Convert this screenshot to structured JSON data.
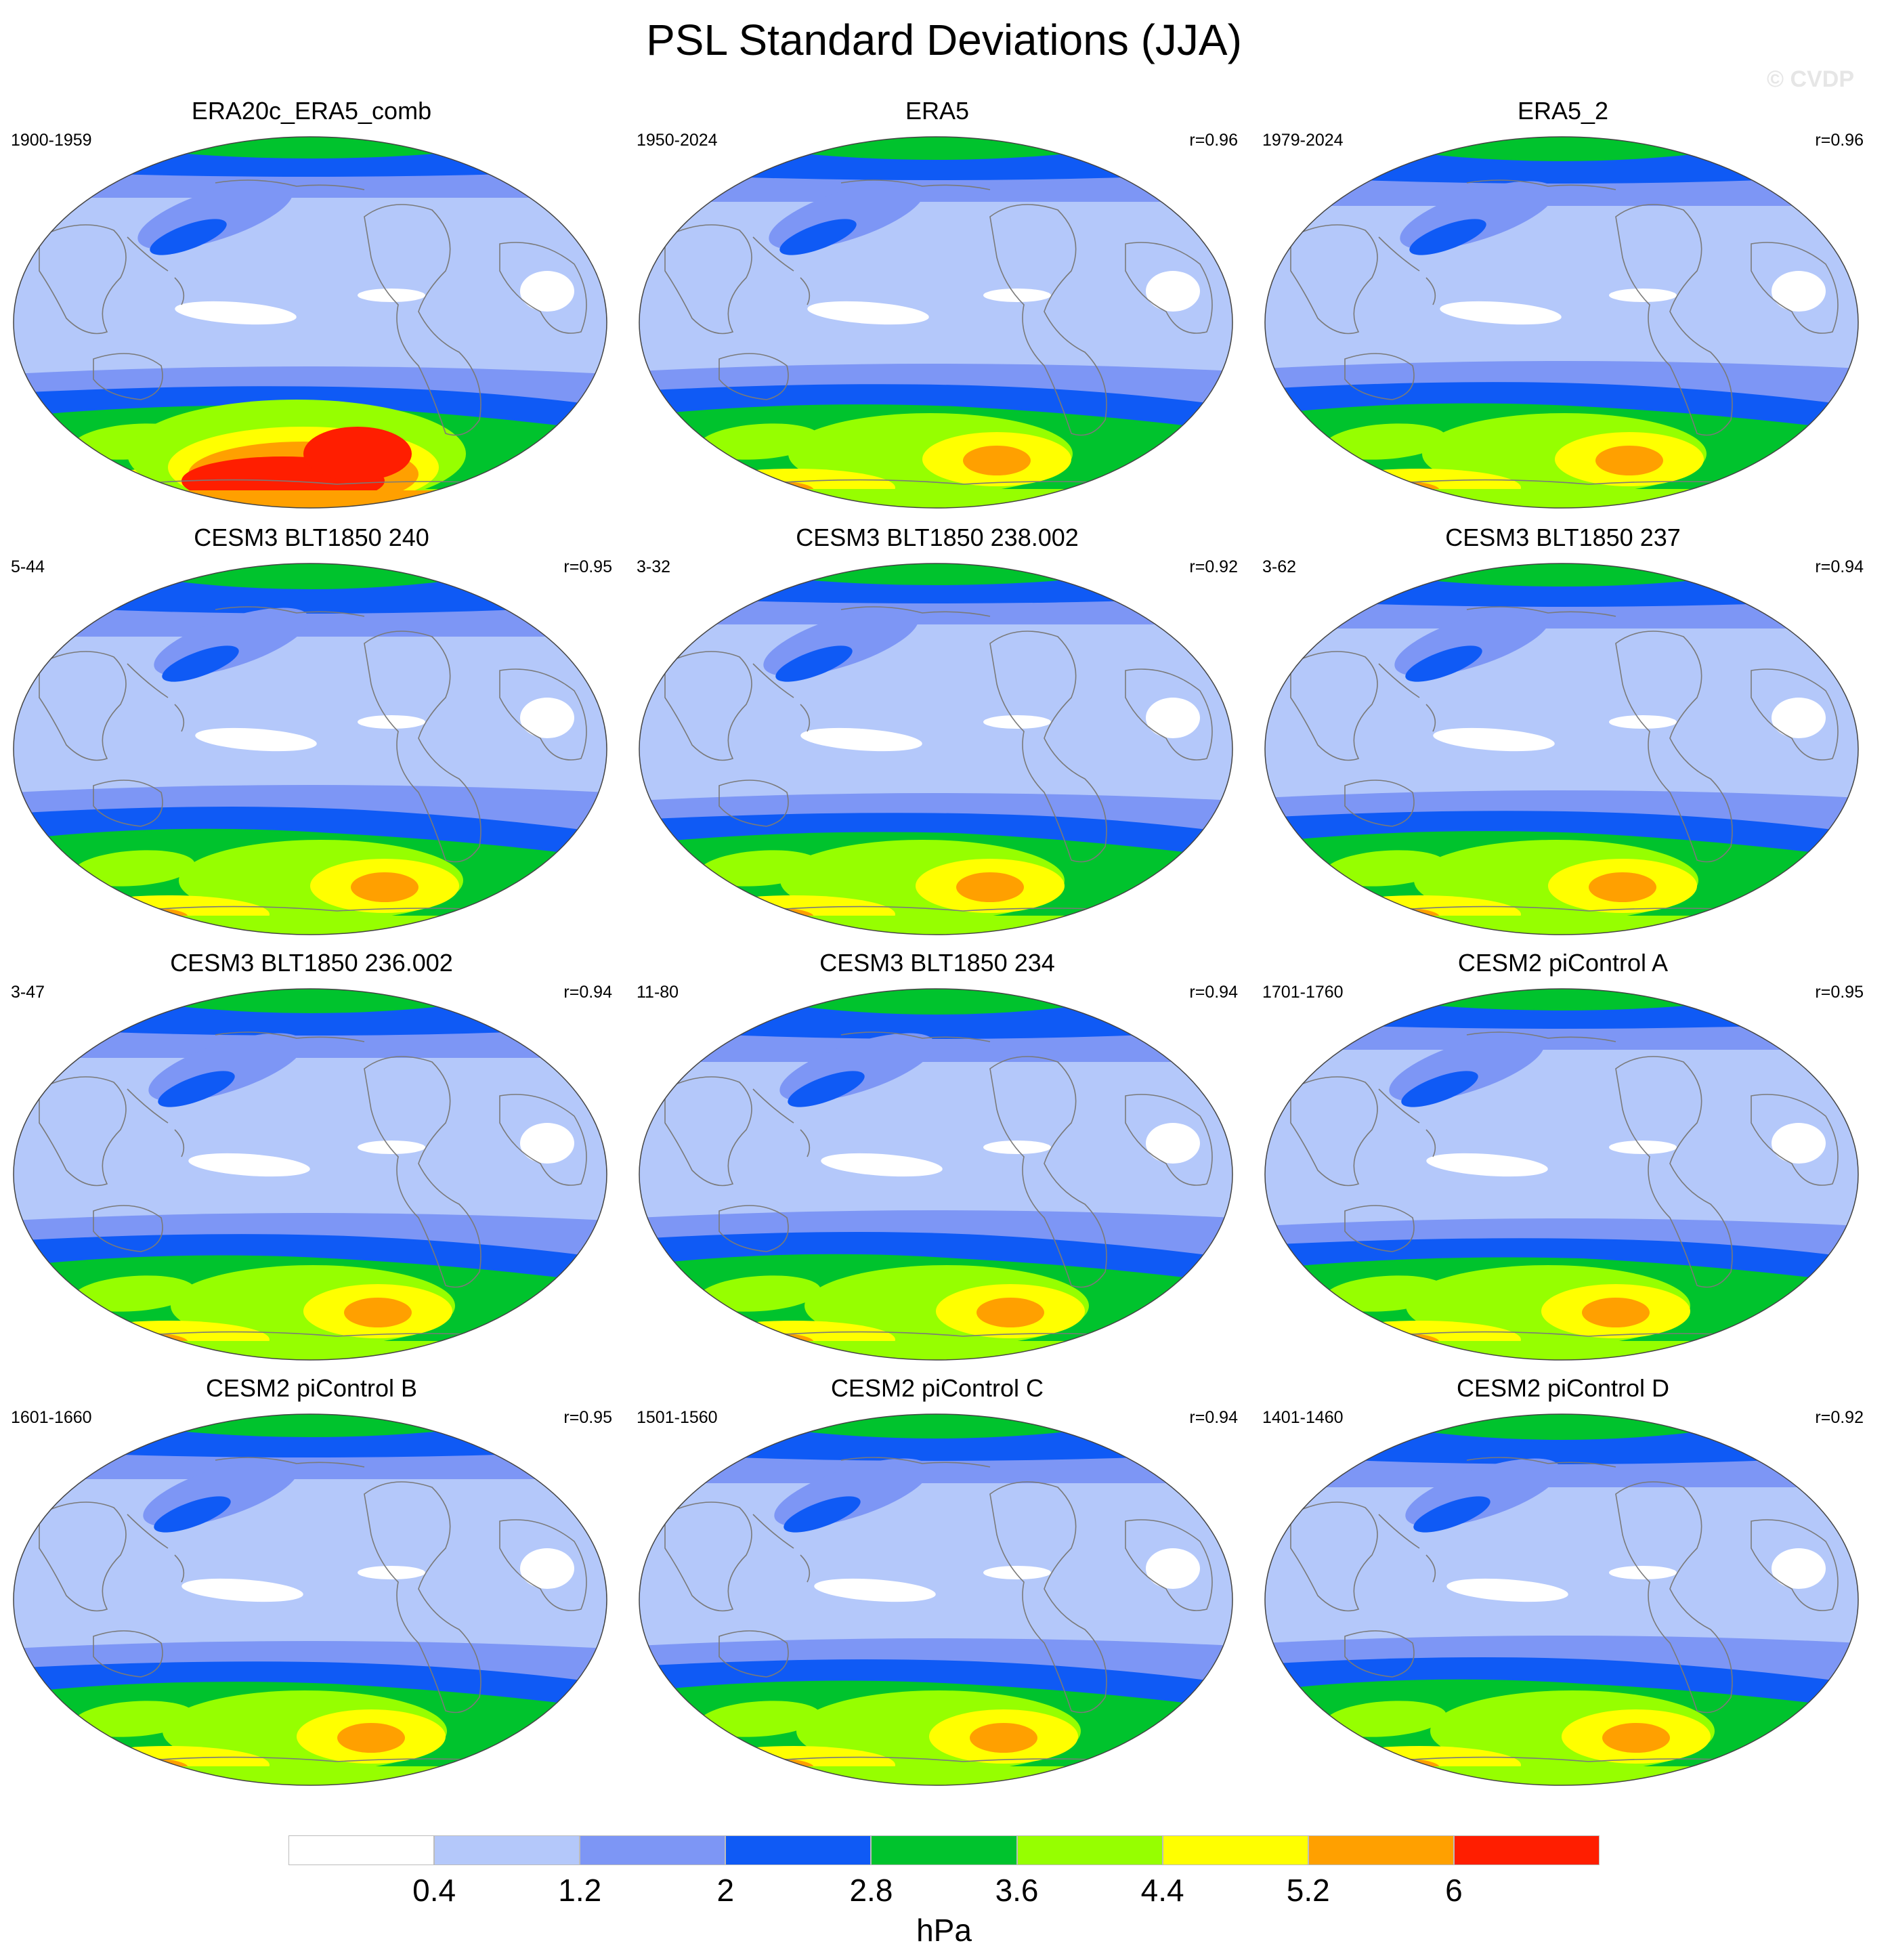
{
  "title": "PSL Standard Deviations (JJA)",
  "watermark": "© CVDP",
  "colorbar": {
    "unit": "hPa",
    "ticks": [
      "0.4",
      "1.2",
      "2",
      "2.8",
      "3.6",
      "4.4",
      "5.2",
      "6"
    ],
    "levels": [
      0.4,
      1.2,
      2,
      2.8,
      3.6,
      4.4,
      5.2,
      6
    ],
    "colors": [
      "#ffffff",
      "#b4c8fa",
      "#7d96f5",
      "#0f5af5",
      "#00c32d",
      "#96ff00",
      "#ffff00",
      "#ffa000",
      "#ff1e00"
    ]
  },
  "panels": [
    {
      "title": "ERA20c_ERA5_comb",
      "period": "1900-1959",
      "corr": ""
    },
    {
      "title": "ERA5",
      "period": "1950-2024",
      "corr": "r=0.96"
    },
    {
      "title": "ERA5_2",
      "period": "1979-2024",
      "corr": "r=0.96"
    },
    {
      "title": "CESM3 BLT1850 240",
      "period": "5-44",
      "corr": "r=0.95"
    },
    {
      "title": "CESM3 BLT1850 238.002",
      "period": "3-32",
      "corr": "r=0.92"
    },
    {
      "title": "CESM3 BLT1850 237",
      "period": "3-62",
      "corr": "r=0.94"
    },
    {
      "title": "CESM3 BLT1850 236.002",
      "period": "3-47",
      "corr": "r=0.94"
    },
    {
      "title": "CESM3 BLT1850 234",
      "period": "11-80",
      "corr": "r=0.94"
    },
    {
      "title": "CESM2 piControl A",
      "period": "1701-1760",
      "corr": "r=0.95"
    },
    {
      "title": "CESM2 piControl B",
      "period": "1601-1660",
      "corr": "r=0.95"
    },
    {
      "title": "CESM2 piControl C",
      "period": "1501-1560",
      "corr": "r=0.94"
    },
    {
      "title": "CESM2 piControl D",
      "period": "1401-1460",
      "corr": "r=0.92"
    }
  ]
}
